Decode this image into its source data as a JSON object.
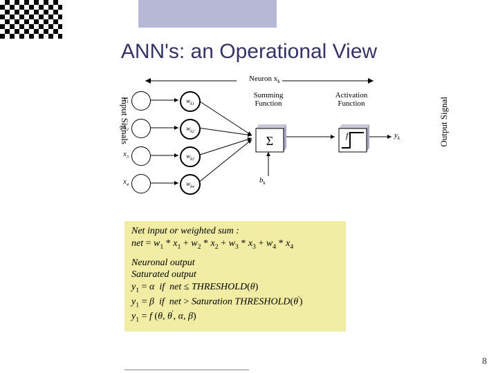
{
  "slide": {
    "title": "ANN's: an Operational View",
    "page_number": "8"
  },
  "colors": {
    "title_text": "#333366",
    "top_bar": "#b7b7d6",
    "formula_bg": "#f1eda4",
    "box_fill": "#ffffff",
    "box_shadow": "#9999aa"
  },
  "diagram": {
    "neuron_caption": "Neuron x_k",
    "left_axis": "Input Signals",
    "right_axis": "Output Signal",
    "inputs": [
      "x₁",
      "x₂",
      "x₃",
      "x₄"
    ],
    "weights": [
      "w_{k1}",
      "w_{k2}",
      "w_{k3}",
      "w_{k4}"
    ],
    "sum_label": "Summing Function",
    "act_label": "Activation Function",
    "sigma": "Σ",
    "f": "f",
    "bias": "b_k",
    "output": "y_k"
  },
  "formula": {
    "l1": "Net input or weighted sum :",
    "l2_html": "<span class='it'>net</span> = <span class='it'>w</span><span class='sub'>1</span> * <span class='it'>x</span><span class='sub'>1</span> + <span class='it'>w</span><span class='sub'>2</span> * <span class='it'>x</span><span class='sub'>2</span> + <span class='it'>w</span><span class='sub'>3</span> * <span class='it'>x</span><span class='sub'>3</span> + <span class='it'>w</span><span class='sub'>4</span> * <span class='it'>x</span><span class='sub'>4</span>",
    "l3": "Neuronal output",
    "l4": "Saturated output",
    "l5_html": "<span class='it'>y</span><span class='sub'>1</span> = <span class='it'>α</span>&nbsp;&nbsp;<span class='it'>if</span>&nbsp;&nbsp;<span class='it'>net</span> ≤ <span class='it'>THRESHOLD</span>(<span class='it'>θ</span>)",
    "l6_html": "<span class='it'>y</span><span class='sub'>1</span> = <span class='it'>β</span>&nbsp;&nbsp;<span class='it'>if</span>&nbsp;&nbsp;<span class='it'>net</span> &gt; <span class='it'>Saturation THRESHOLD</span>(<span class='it'>θ</span><span class='sup'>'</span>)",
    "l7_html": "<span class='it'>y</span><span class='sub'>1</span> = <span class='it'>f</span> (<span class='it'>θ</span>, <span class='it'>θ</span><span class='sup'>'</span>, <span class='it'>α</span>, <span class='it'>β</span>)"
  }
}
